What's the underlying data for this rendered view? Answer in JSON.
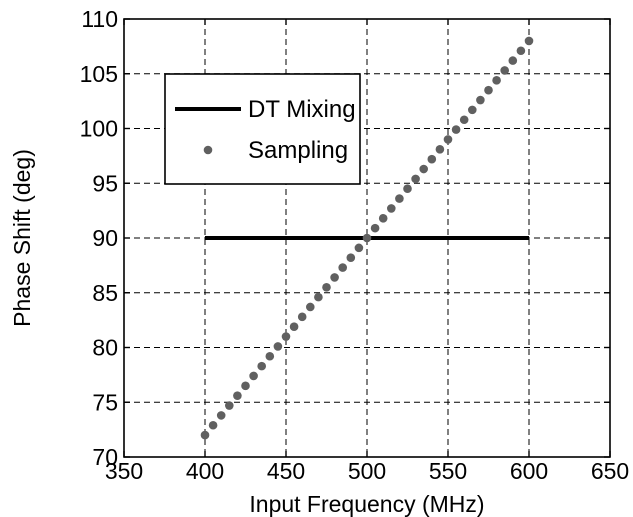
{
  "chart_data": {
    "type": "line",
    "xlabel": "Input Frequency (MHz)",
    "ylabel": "Phase Shift (deg)",
    "xlim": [
      350,
      650
    ],
    "ylim": [
      70,
      110
    ],
    "x_ticks": [
      350,
      400,
      450,
      500,
      550,
      600,
      650
    ],
    "y_ticks": [
      70,
      75,
      80,
      85,
      90,
      95,
      100,
      105,
      110
    ],
    "grid": true,
    "legend_position": "top-left",
    "series": [
      {
        "name": "DT Mixing",
        "style": "line",
        "color": "#000000",
        "x": [
          400,
          600
        ],
        "y": [
          90,
          90
        ]
      },
      {
        "name": "Sampling",
        "style": "dots",
        "color": "#606060",
        "x": [
          400,
          405,
          410,
          415,
          420,
          425,
          430,
          435,
          440,
          445,
          450,
          455,
          460,
          465,
          470,
          475,
          480,
          485,
          490,
          495,
          500,
          505,
          510,
          515,
          520,
          525,
          530,
          535,
          540,
          545,
          550,
          555,
          560,
          565,
          570,
          575,
          580,
          585,
          590,
          595,
          600
        ],
        "y": [
          72,
          72.9,
          73.8,
          74.7,
          75.6,
          76.5,
          77.4,
          78.3,
          79.2,
          80.1,
          81,
          81.9,
          82.8,
          83.7,
          84.6,
          85.5,
          86.4,
          87.3,
          88.2,
          89.1,
          90,
          90.9,
          91.8,
          92.7,
          93.6,
          94.5,
          95.4,
          96.3,
          97.2,
          98.1,
          99,
          99.9,
          100.8,
          101.7,
          102.6,
          103.5,
          104.4,
          105.3,
          106.2,
          107.1,
          108
        ]
      }
    ]
  }
}
